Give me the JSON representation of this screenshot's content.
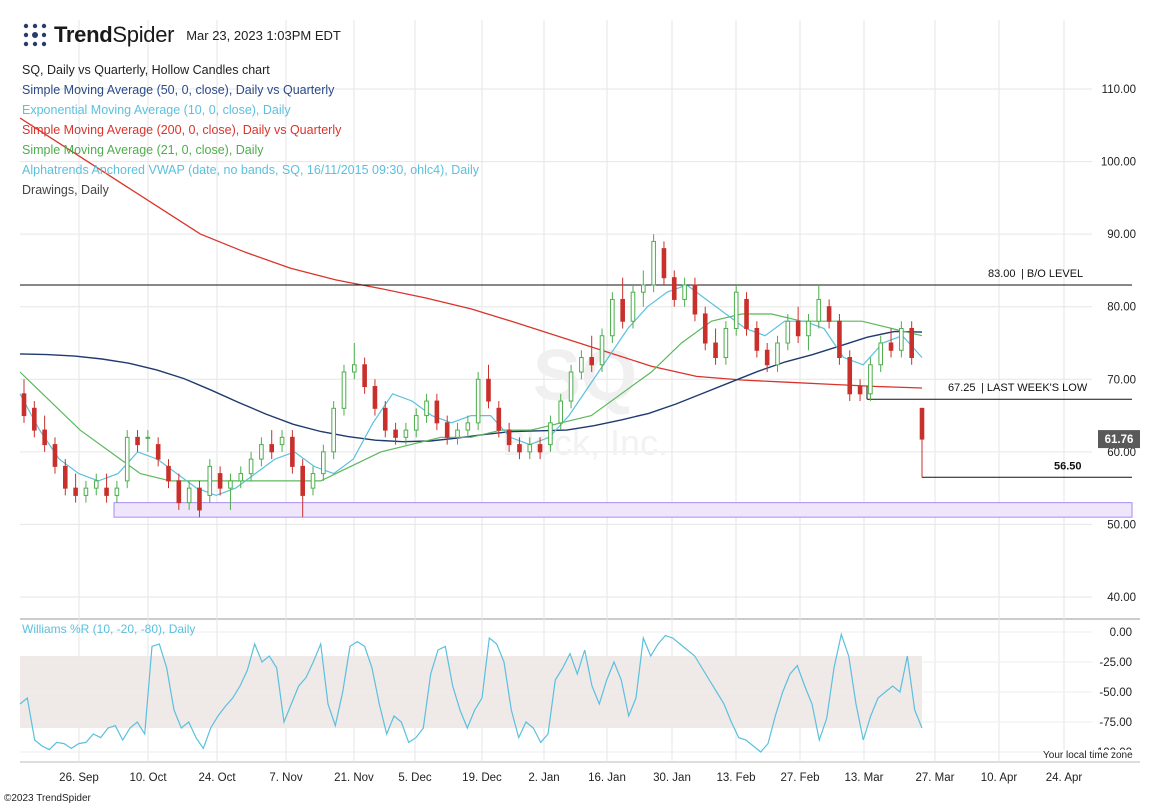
{
  "header": {
    "brand_bold": "Trend",
    "brand_light": "Spider",
    "timestamp": "Mar 23, 2023 1:03PM EDT"
  },
  "legend": [
    {
      "text": "SQ, Daily vs Quarterly, Hollow Candles chart",
      "color": "#222222"
    },
    {
      "text": "Simple Moving Average (50, 0, close), Daily vs Quarterly",
      "color": "#2b4a8b"
    },
    {
      "text": "Exponential Moving Average (10, 0, close), Daily",
      "color": "#5bc0de"
    },
    {
      "text": "Simple Moving Average (200, 0, close), Daily vs Quarterly",
      "color": "#d9342b"
    },
    {
      "text": "Simple Moving Average (21, 0, close), Daily",
      "color": "#4cae4c"
    },
    {
      "text": "Alphatrends Anchored VWAP (date, no bands, SQ, 16/11/2015 09:30, ohlc4), Daily",
      "color": "#5bc0de"
    },
    {
      "text": "Drawings, Daily",
      "color": "#444444"
    }
  ],
  "footer": {
    "copyright": "©2023 TrendSpider",
    "timezone": "Your local time zone"
  },
  "colors": {
    "up": "#4cae4c",
    "down": "#c9302c",
    "sma50": "#1f3a6e",
    "ema10": "#5bc0de",
    "sma200": "#d9342b",
    "sma21": "#5cb85c",
    "zone": "#a78bfa",
    "wr": "#5bc0de"
  },
  "chart_data": {
    "type": "candlestick",
    "symbol": "SQ",
    "x_labels": [
      "26. Sep",
      "10. Oct",
      "24. Oct",
      "7. Nov",
      "21. Nov",
      "5. Dec",
      "19. Dec",
      "2. Jan",
      "16. Jan",
      "30. Jan",
      "13. Feb",
      "27. Feb",
      "13. Mar",
      "27. Mar",
      "10. Apr",
      "24. Apr"
    ],
    "y_ticks": [
      40,
      50,
      60,
      70,
      80,
      90,
      100,
      110
    ],
    "y_range": [
      37,
      115
    ],
    "watermark": "SQ",
    "watermark_sub": "Block, Inc.",
    "last_price": 61.76,
    "last_price_label": "61.76",
    "candles": [
      {
        "o": 68,
        "h": 70,
        "l": 64,
        "c": 65
      },
      {
        "o": 66,
        "h": 67,
        "l": 62,
        "c": 63
      },
      {
        "o": 63,
        "h": 65,
        "l": 60,
        "c": 61
      },
      {
        "o": 61,
        "h": 62,
        "l": 57,
        "c": 58
      },
      {
        "o": 58,
        "h": 59,
        "l": 54,
        "c": 55
      },
      {
        "o": 55,
        "h": 57,
        "l": 53,
        "c": 54
      },
      {
        "o": 54,
        "h": 56,
        "l": 53,
        "c": 55
      },
      {
        "o": 55,
        "h": 57,
        "l": 54,
        "c": 56
      },
      {
        "o": 55,
        "h": 57,
        "l": 53,
        "c": 54
      },
      {
        "o": 54,
        "h": 56,
        "l": 53,
        "c": 55
      },
      {
        "o": 56,
        "h": 63,
        "l": 55,
        "c": 62
      },
      {
        "o": 62,
        "h": 63,
        "l": 60,
        "c": 61
      },
      {
        "o": 62,
        "h": 63,
        "l": 60,
        "c": 62
      },
      {
        "o": 61,
        "h": 62,
        "l": 58,
        "c": 59
      },
      {
        "o": 58,
        "h": 59,
        "l": 55,
        "c": 56
      },
      {
        "o": 56,
        "h": 57,
        "l": 52,
        "c": 53
      },
      {
        "o": 53,
        "h": 56,
        "l": 52,
        "c": 55
      },
      {
        "o": 55,
        "h": 56,
        "l": 51,
        "c": 52
      },
      {
        "o": 54,
        "h": 59,
        "l": 53,
        "c": 58
      },
      {
        "o": 57,
        "h": 58,
        "l": 54,
        "c": 55
      },
      {
        "o": 55,
        "h": 57,
        "l": 52,
        "c": 56
      },
      {
        "o": 56,
        "h": 58,
        "l": 55,
        "c": 57
      },
      {
        "o": 57,
        "h": 60,
        "l": 56,
        "c": 59
      },
      {
        "o": 59,
        "h": 62,
        "l": 58,
        "c": 61
      },
      {
        "o": 61,
        "h": 63,
        "l": 59,
        "c": 60
      },
      {
        "o": 61,
        "h": 63,
        "l": 60,
        "c": 62
      },
      {
        "o": 62,
        "h": 63,
        "l": 57,
        "c": 58
      },
      {
        "o": 58,
        "h": 59,
        "l": 51,
        "c": 54
      },
      {
        "o": 55,
        "h": 58,
        "l": 54,
        "c": 57
      },
      {
        "o": 57,
        "h": 61,
        "l": 56,
        "c": 60
      },
      {
        "o": 60,
        "h": 67,
        "l": 59,
        "c": 66
      },
      {
        "o": 66,
        "h": 72,
        "l": 65,
        "c": 71
      },
      {
        "o": 71,
        "h": 75,
        "l": 70,
        "c": 72
      },
      {
        "o": 72,
        "h": 73,
        "l": 68,
        "c": 69
      },
      {
        "o": 69,
        "h": 70,
        "l": 65,
        "c": 66
      },
      {
        "o": 66,
        "h": 67,
        "l": 62,
        "c": 63
      },
      {
        "o": 63,
        "h": 64,
        "l": 61,
        "c": 62
      },
      {
        "o": 62,
        "h": 64,
        "l": 61,
        "c": 63
      },
      {
        "o": 63,
        "h": 66,
        "l": 62,
        "c": 65
      },
      {
        "o": 65,
        "h": 68,
        "l": 64,
        "c": 67
      },
      {
        "o": 67,
        "h": 68,
        "l": 63,
        "c": 64
      },
      {
        "o": 64,
        "h": 65,
        "l": 61,
        "c": 62
      },
      {
        "o": 62,
        "h": 64,
        "l": 61,
        "c": 63
      },
      {
        "o": 63,
        "h": 65,
        "l": 62,
        "c": 64
      },
      {
        "o": 64,
        "h": 71,
        "l": 63,
        "c": 70
      },
      {
        "o": 70,
        "h": 72,
        "l": 66,
        "c": 67
      },
      {
        "o": 66,
        "h": 67,
        "l": 62,
        "c": 63
      },
      {
        "o": 63,
        "h": 64,
        "l": 60,
        "c": 61
      },
      {
        "o": 61,
        "h": 62,
        "l": 59,
        "c": 60
      },
      {
        "o": 60,
        "h": 62,
        "l": 59,
        "c": 61
      },
      {
        "o": 61,
        "h": 62,
        "l": 59,
        "c": 60
      },
      {
        "o": 61,
        "h": 65,
        "l": 60,
        "c": 64
      },
      {
        "o": 64,
        "h": 68,
        "l": 63,
        "c": 67
      },
      {
        "o": 67,
        "h": 72,
        "l": 66,
        "c": 71
      },
      {
        "o": 71,
        "h": 74,
        "l": 70,
        "c": 73
      },
      {
        "o": 73,
        "h": 76,
        "l": 71,
        "c": 72
      },
      {
        "o": 72,
        "h": 77,
        "l": 71,
        "c": 76
      },
      {
        "o": 76,
        "h": 82,
        "l": 75,
        "c": 81
      },
      {
        "o": 81,
        "h": 84,
        "l": 77,
        "c": 78
      },
      {
        "o": 78,
        "h": 83,
        "l": 77,
        "c": 82
      },
      {
        "o": 82,
        "h": 85,
        "l": 80,
        "c": 83
      },
      {
        "o": 83,
        "h": 90,
        "l": 82,
        "c": 89
      },
      {
        "o": 88,
        "h": 89,
        "l": 83,
        "c": 84
      },
      {
        "o": 84,
        "h": 85,
        "l": 80,
        "c": 81
      },
      {
        "o": 81,
        "h": 84,
        "l": 80,
        "c": 83
      },
      {
        "o": 83,
        "h": 84,
        "l": 78,
        "c": 79
      },
      {
        "o": 79,
        "h": 80,
        "l": 74,
        "c": 75
      },
      {
        "o": 75,
        "h": 77,
        "l": 72,
        "c": 73
      },
      {
        "o": 73,
        "h": 78,
        "l": 72,
        "c": 77
      },
      {
        "o": 77,
        "h": 83,
        "l": 76,
        "c": 82
      },
      {
        "o": 81,
        "h": 82,
        "l": 76,
        "c": 77
      },
      {
        "o": 77,
        "h": 78,
        "l": 73,
        "c": 74
      },
      {
        "o": 74,
        "h": 75,
        "l": 71,
        "c": 72
      },
      {
        "o": 72,
        "h": 76,
        "l": 71,
        "c": 75
      },
      {
        "o": 75,
        "h": 79,
        "l": 74,
        "c": 78
      },
      {
        "o": 78,
        "h": 80,
        "l": 75,
        "c": 76
      },
      {
        "o": 76,
        "h": 79,
        "l": 74,
        "c": 78
      },
      {
        "o": 78,
        "h": 83,
        "l": 77,
        "c": 81
      },
      {
        "o": 80,
        "h": 81,
        "l": 77,
        "c": 78
      },
      {
        "o": 78,
        "h": 79,
        "l": 72,
        "c": 73
      },
      {
        "o": 73,
        "h": 74,
        "l": 67,
        "c": 68
      },
      {
        "o": 69,
        "h": 70,
        "l": 67,
        "c": 68
      },
      {
        "o": 68,
        "h": 73,
        "l": 67,
        "c": 72
      },
      {
        "o": 72,
        "h": 76,
        "l": 71,
        "c": 75
      },
      {
        "o": 75,
        "h": 77,
        "l": 73,
        "c": 74
      },
      {
        "o": 74,
        "h": 78,
        "l": 73,
        "c": 77
      },
      {
        "o": 77,
        "h": 78,
        "l": 72,
        "c": 73
      },
      {
        "o": 66,
        "h": 66,
        "l": 56.5,
        "c": 61.76
      }
    ],
    "sma50": [
      73.5,
      73.4,
      73.2,
      72.8,
      72.2,
      71.3,
      70.1,
      68.5,
      66.8,
      65.2,
      63.8,
      62.8,
      62.1,
      61.6,
      61.4,
      61.5,
      61.9,
      62.4,
      62.8,
      62.9,
      63,
      63.6,
      64.4,
      65.3,
      66.6,
      68.1,
      69.6,
      71.1,
      72.4,
      73.4,
      74.6,
      75.8,
      76.6,
      76.5
    ],
    "ema10": [
      68,
      63,
      59,
      57,
      56,
      57,
      60,
      59,
      57,
      55,
      54,
      55,
      57,
      59,
      60,
      58,
      57,
      59,
      64,
      68,
      67,
      65,
      64,
      65,
      65,
      62,
      61,
      62,
      65,
      69,
      73,
      77,
      80,
      82,
      83,
      81,
      79,
      77,
      76,
      78,
      78,
      77,
      73,
      72,
      75,
      76,
      73
    ],
    "sma200": [
      106,
      102,
      98,
      94,
      90,
      87.5,
      85.3,
      83.7,
      82.5,
      81.2,
      79.7,
      77.8,
      75.8,
      73.8,
      71.8,
      70.4,
      69.9,
      69.6,
      69.3,
      69,
      68.8
    ],
    "sma21": [
      71,
      67,
      63,
      60,
      57,
      56,
      56,
      56,
      56,
      56,
      56,
      58,
      60,
      61,
      62,
      62,
      63,
      63,
      64,
      65,
      68,
      71,
      75,
      78,
      79,
      79,
      78,
      78,
      78,
      77,
      76
    ],
    "levels": [
      {
        "value": 83.0,
        "value_label": "83.00",
        "text": "| B/O LEVEL"
      },
      {
        "value": 67.25,
        "value_label": "67.25",
        "text": "| LAST WEEK'S LOW"
      },
      {
        "value": 56.5,
        "value_label": "56.50",
        "text": ""
      }
    ],
    "support_zone": [
      51,
      53
    ],
    "williams_r": {
      "label": "Williams %R (10, -20, -80), Daily",
      "y_ticks": [
        "0.00",
        "-25.00",
        "-50.00",
        "-75.00",
        "-100.00"
      ],
      "band": [
        -80,
        -20
      ],
      "values": [
        -60,
        -55,
        -90,
        -95,
        -98,
        -92,
        -93,
        -97,
        -93,
        -92,
        -85,
        -88,
        -80,
        -78,
        -90,
        -80,
        -75,
        -85,
        -12,
        -10,
        -30,
        -65,
        -80,
        -75,
        -88,
        -97,
        -80,
        -70,
        -62,
        -55,
        -45,
        -32,
        -10,
        -25,
        -20,
        -30,
        -75,
        -60,
        -45,
        -38,
        -25,
        -10,
        -60,
        -78,
        -50,
        -12,
        -8,
        -12,
        -30,
        -60,
        -85,
        -70,
        -75,
        -92,
        -88,
        -80,
        -35,
        -15,
        -12,
        -45,
        -65,
        -80,
        -65,
        -55,
        -5,
        -10,
        -25,
        -65,
        -88,
        -75,
        -80,
        -92,
        -85,
        -40,
        -30,
        -18,
        -35,
        -15,
        -45,
        -60,
        -40,
        -25,
        -40,
        -70,
        -55,
        -5,
        -20,
        -10,
        -3,
        -5,
        -10,
        -15,
        -20,
        -30,
        -40,
        -50,
        -60,
        -75,
        -88,
        -90,
        -95,
        -100,
        -93,
        -70,
        -50,
        -35,
        -28,
        -45,
        -60,
        -90,
        -72,
        -30,
        -2,
        -20,
        -60,
        -90,
        -70,
        -55,
        -50,
        -45,
        -50,
        -20,
        -65,
        -80
      ]
    }
  }
}
